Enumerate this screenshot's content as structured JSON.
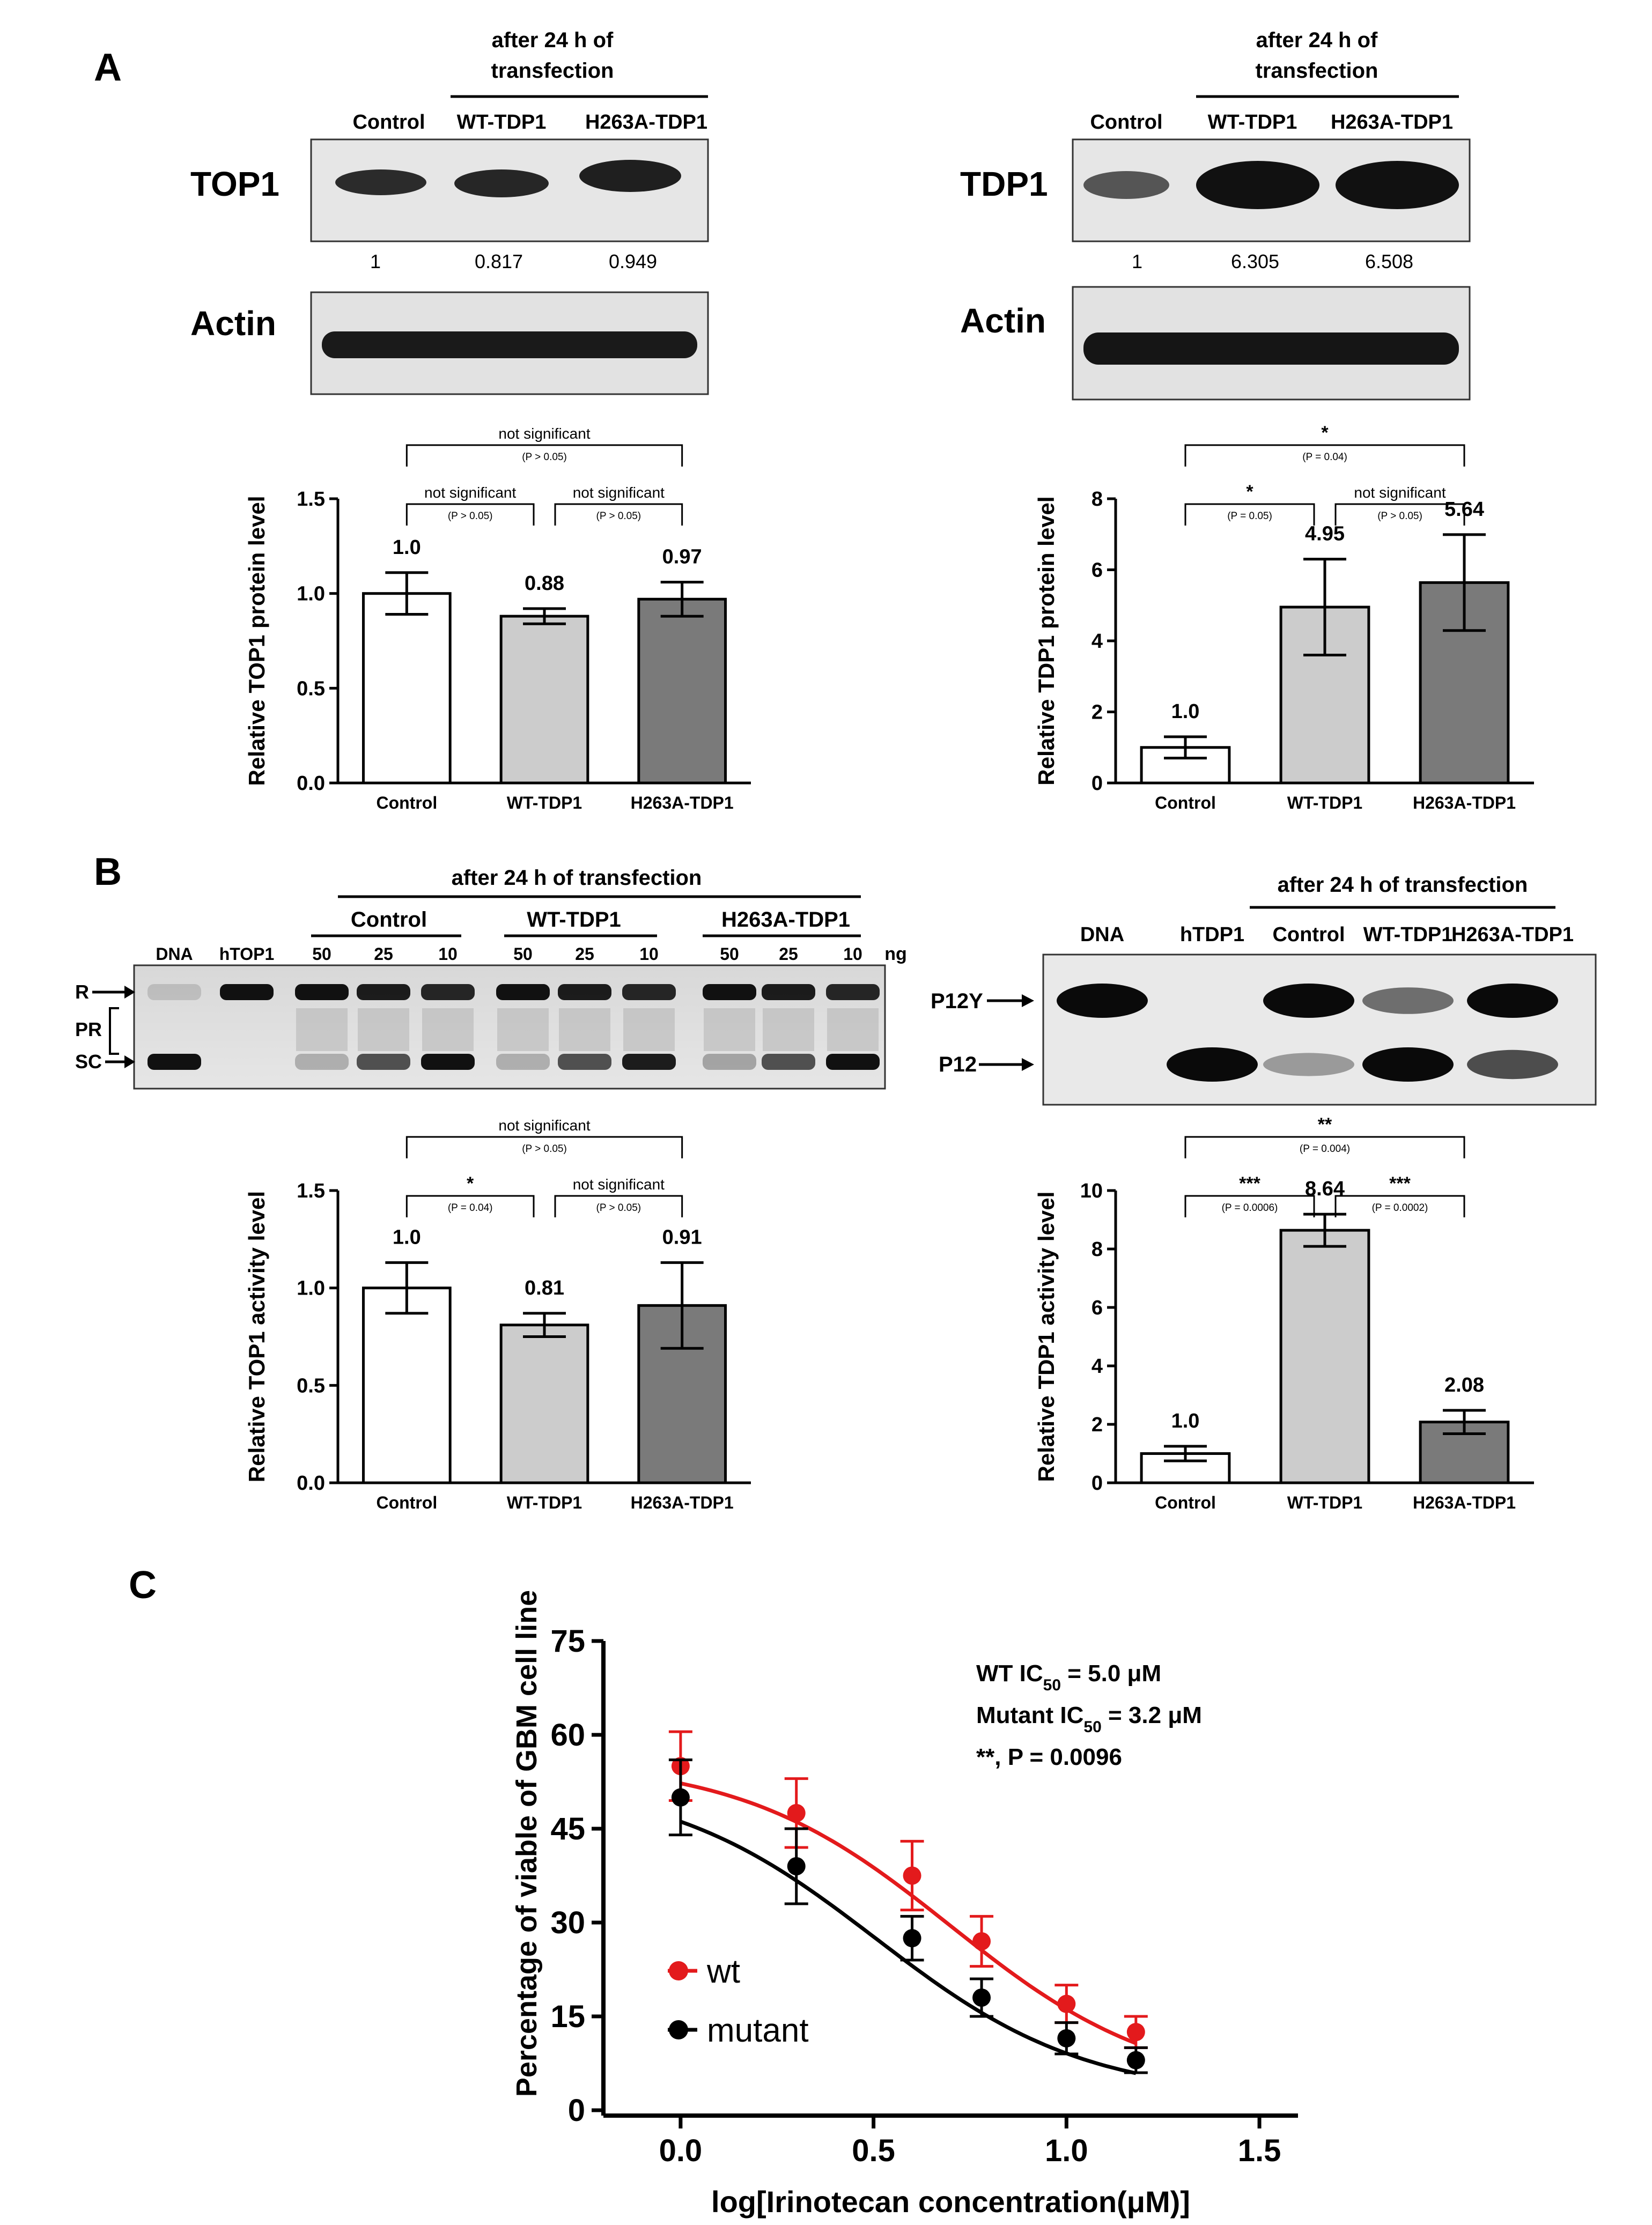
{
  "panel_labels": {
    "a": "A",
    "b": "B",
    "c": "C"
  },
  "blots": {
    "top1": {
      "header_line1": "after 24 h of",
      "header_line2": "transfection",
      "lanes": [
        "Control",
        "WT-TDP1",
        "H263A-TDP1"
      ],
      "protein_label": "TOP1",
      "quant": [
        "1",
        "0.817",
        "0.949"
      ],
      "loading_label": "Actin"
    },
    "tdp1": {
      "header_line1": "after 24 h of",
      "header_line2": "transfection",
      "lanes": [
        "Control",
        "WT-TDP1",
        "H263A-TDP1"
      ],
      "protein_label": "TDP1",
      "quant": [
        "1",
        "6.305",
        "6.508"
      ],
      "loading_label": "Actin"
    }
  },
  "gels": {
    "top1_gel": {
      "header": "after 24 h of transfection",
      "groups": [
        "Control",
        "WT-TDP1",
        "H263A-TDP1"
      ],
      "lanes": [
        "DNA",
        "hTOP1",
        "50",
        "25",
        "10",
        "50",
        "25",
        "10",
        "50",
        "25",
        "10"
      ],
      "unit": "ng",
      "row_labels": [
        "R",
        "PR",
        "SC"
      ]
    },
    "tdp1_gel": {
      "header": "after 24 h of transfection",
      "lanes": [
        "DNA",
        "hTDP1",
        "Control",
        "WT-TDP1",
        "H263A-TDP1"
      ],
      "row_labels": [
        "P12Y",
        "P12"
      ]
    }
  },
  "chart_data": [
    {
      "type": "bar",
      "id": "top1_protein",
      "categories": [
        "Control",
        "WT-TDP1",
        "H263A-TDP1"
      ],
      "values": [
        1.0,
        0.88,
        0.97
      ],
      "errors": [
        0.11,
        0.04,
        0.09
      ],
      "value_labels": [
        "1.0",
        "0.88",
        "0.97"
      ],
      "ylabel": "Relative TOP1 protein level",
      "ylim": [
        0,
        1.5
      ],
      "yticks": [
        "0.0",
        "0.5",
        "1.0",
        "1.5"
      ],
      "bar_colors": [
        "#ffffff",
        "#cccccc",
        "#7a7a7a"
      ],
      "comparisons": [
        {
          "from": 0,
          "to": 1,
          "label": "not significant",
          "p": "(P > 0.05)"
        },
        {
          "from": 1,
          "to": 2,
          "label": "not significant",
          "p": "(P > 0.05)"
        },
        {
          "from": 0,
          "to": 2,
          "label": "not significant",
          "p": "(P > 0.05)"
        }
      ]
    },
    {
      "type": "bar",
      "id": "tdp1_protein",
      "categories": [
        "Control",
        "WT-TDP1",
        "H263A-TDP1"
      ],
      "values": [
        1.0,
        4.95,
        5.64
      ],
      "errors": [
        0.3,
        1.35,
        1.35
      ],
      "value_labels": [
        "1.0",
        "4.95",
        "5.64"
      ],
      "ylabel": "Relative TDP1 protein level",
      "ylim": [
        0,
        8
      ],
      "yticks": [
        "0",
        "2",
        "4",
        "6",
        "8"
      ],
      "bar_colors": [
        "#ffffff",
        "#cccccc",
        "#7a7a7a"
      ],
      "comparisons": [
        {
          "from": 0,
          "to": 1,
          "label": "*",
          "p": "(P = 0.05)"
        },
        {
          "from": 1,
          "to": 2,
          "label": "not significant",
          "p": "(P > 0.05)"
        },
        {
          "from": 0,
          "to": 2,
          "label": "*",
          "p": "(P = 0.04)"
        }
      ]
    },
    {
      "type": "bar",
      "id": "top1_activity",
      "categories": [
        "Control",
        "WT-TDP1",
        "H263A-TDP1"
      ],
      "values": [
        1.0,
        0.81,
        0.91
      ],
      "errors": [
        0.13,
        0.06,
        0.22
      ],
      "value_labels": [
        "1.0",
        "0.81",
        "0.91"
      ],
      "ylabel": "Relative TOP1 activity level",
      "ylim": [
        0,
        1.5
      ],
      "yticks": [
        "0.0",
        "0.5",
        "1.0",
        "1.5"
      ],
      "bar_colors": [
        "#ffffff",
        "#cccccc",
        "#7a7a7a"
      ],
      "comparisons": [
        {
          "from": 0,
          "to": 1,
          "label": "*",
          "p": "(P = 0.04)"
        },
        {
          "from": 1,
          "to": 2,
          "label": "not significant",
          "p": "(P > 0.05)"
        },
        {
          "from": 0,
          "to": 2,
          "label": "not significant",
          "p": "(P > 0.05)"
        }
      ]
    },
    {
      "type": "bar",
      "id": "tdp1_activity",
      "categories": [
        "Control",
        "WT-TDP1",
        "H263A-TDP1"
      ],
      "values": [
        1.0,
        8.64,
        2.08
      ],
      "errors": [
        0.25,
        0.55,
        0.4
      ],
      "value_labels": [
        "1.0",
        "8.64",
        "2.08"
      ],
      "ylabel": "Relative TDP1 activity level",
      "ylim": [
        0,
        10
      ],
      "yticks": [
        "0",
        "2",
        "4",
        "6",
        "8",
        "10"
      ],
      "bar_colors": [
        "#ffffff",
        "#cccccc",
        "#7a7a7a"
      ],
      "comparisons": [
        {
          "from": 0,
          "to": 1,
          "label": "***",
          "p": "(P = 0.0006)"
        },
        {
          "from": 1,
          "to": 2,
          "label": "***",
          "p": "(P = 0.0002)"
        },
        {
          "from": 0,
          "to": 2,
          "label": "**",
          "p": "(P = 0.004)"
        }
      ]
    },
    {
      "type": "line",
      "id": "irinotecan_curve",
      "x": [
        0.0,
        0.3,
        0.6,
        0.78,
        1.0,
        1.18
      ],
      "xlabel": "log[Irinotecan concentration(μM)]",
      "ylabel": "Percentage of viable of GBM cell line",
      "xlim": [
        -0.2,
        1.6
      ],
      "ylim": [
        0,
        75
      ],
      "xticks": [
        "0.0",
        "0.5",
        "1.0",
        "1.5"
      ],
      "yticks": [
        "0",
        "15",
        "30",
        "45",
        "60",
        "75"
      ],
      "series": [
        {
          "name": "wt",
          "color": "#e31a1c",
          "values": [
            55,
            47.5,
            37.5,
            27,
            17,
            12.5
          ],
          "errors": [
            5.5,
            5.5,
            5.5,
            4,
            3,
            2.5
          ],
          "ic50": 5.0,
          "log_ic50": 0.699,
          "top": 56,
          "bottom": 3
        },
        {
          "name": "mutant",
          "color": "#000000",
          "values": [
            50,
            39,
            27.5,
            18,
            11.5,
            8
          ],
          "errors": [
            6,
            6,
            3.5,
            3,
            2.5,
            2
          ],
          "ic50": 3.2,
          "log_ic50": 0.505,
          "top": 53,
          "bottom": 2
        }
      ],
      "annotations": [
        {
          "prefix": "WT IC",
          "sub": "50",
          "suffix": " = 5.0 μM"
        },
        {
          "prefix": "Mutant IC",
          "sub": "50",
          "suffix": " = 3.2 μM"
        },
        {
          "prefix": "**, P = 0.0096",
          "sub": "",
          "suffix": ""
        }
      ]
    }
  ]
}
